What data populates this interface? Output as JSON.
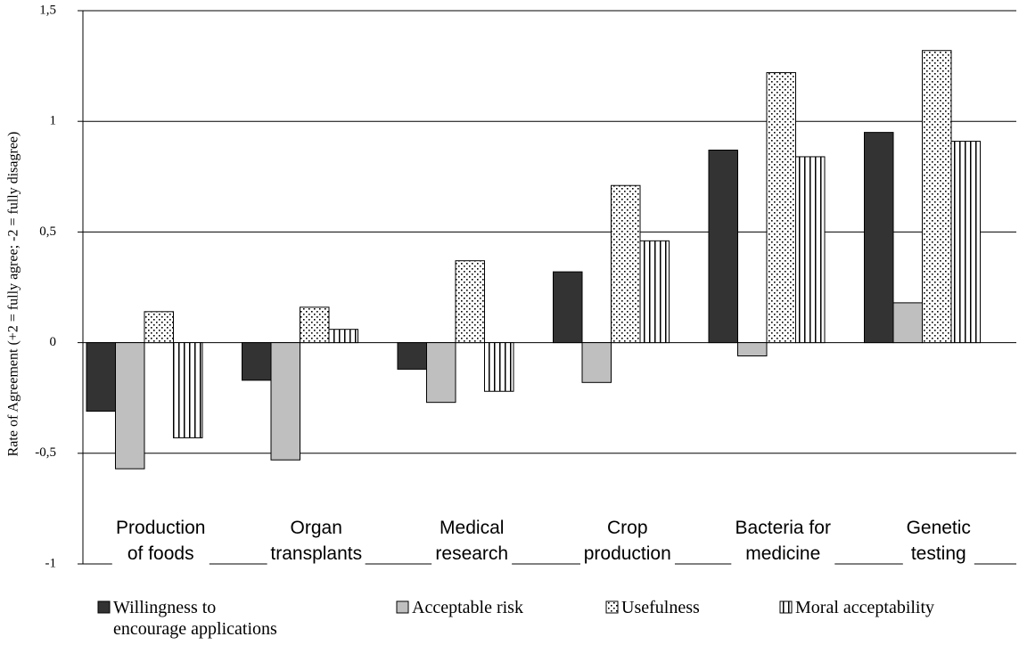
{
  "chart_data": {
    "type": "bar",
    "y_label": "Rate of Agreement (+2 = fully agree; -2 = fully disagree)",
    "categories": [
      "Production\nof foods",
      "Organ\ntransplants",
      "Medical\nresearch",
      "Crop\nproduction",
      "Bacteria for\nmedicine",
      "Genetic\ntesting"
    ],
    "series": [
      {
        "name": "Willingness to\nencourage applications",
        "color": "#333333",
        "pattern": "solid",
        "values": [
          -0.31,
          -0.17,
          -0.12,
          0.32,
          0.87,
          0.95
        ]
      },
      {
        "name": "Acceptable risk",
        "color": "#bfbfbf",
        "pattern": "solid",
        "values": [
          -0.57,
          -0.53,
          -0.27,
          -0.18,
          -0.06,
          0.18
        ]
      },
      {
        "name": "Usefulness",
        "color": "#ffffff",
        "pattern": "dots",
        "values": [
          0.14,
          0.16,
          0.37,
          0.71,
          1.22,
          1.32
        ]
      },
      {
        "name": "Moral acceptability",
        "color": "#ffffff",
        "pattern": "stripes",
        "values": [
          -0.43,
          0.06,
          -0.22,
          0.46,
          0.84,
          0.91
        ]
      }
    ],
    "ylim": [
      -1,
      1.5
    ],
    "yticks": [
      -1,
      {
        "value": -0.5,
        "label": "-0,5"
      },
      0,
      {
        "value": 0.5,
        "label": "0,5"
      },
      1,
      {
        "value": 1.5,
        "label": "1,5"
      }
    ],
    "grid": true,
    "legend": "bottom"
  }
}
